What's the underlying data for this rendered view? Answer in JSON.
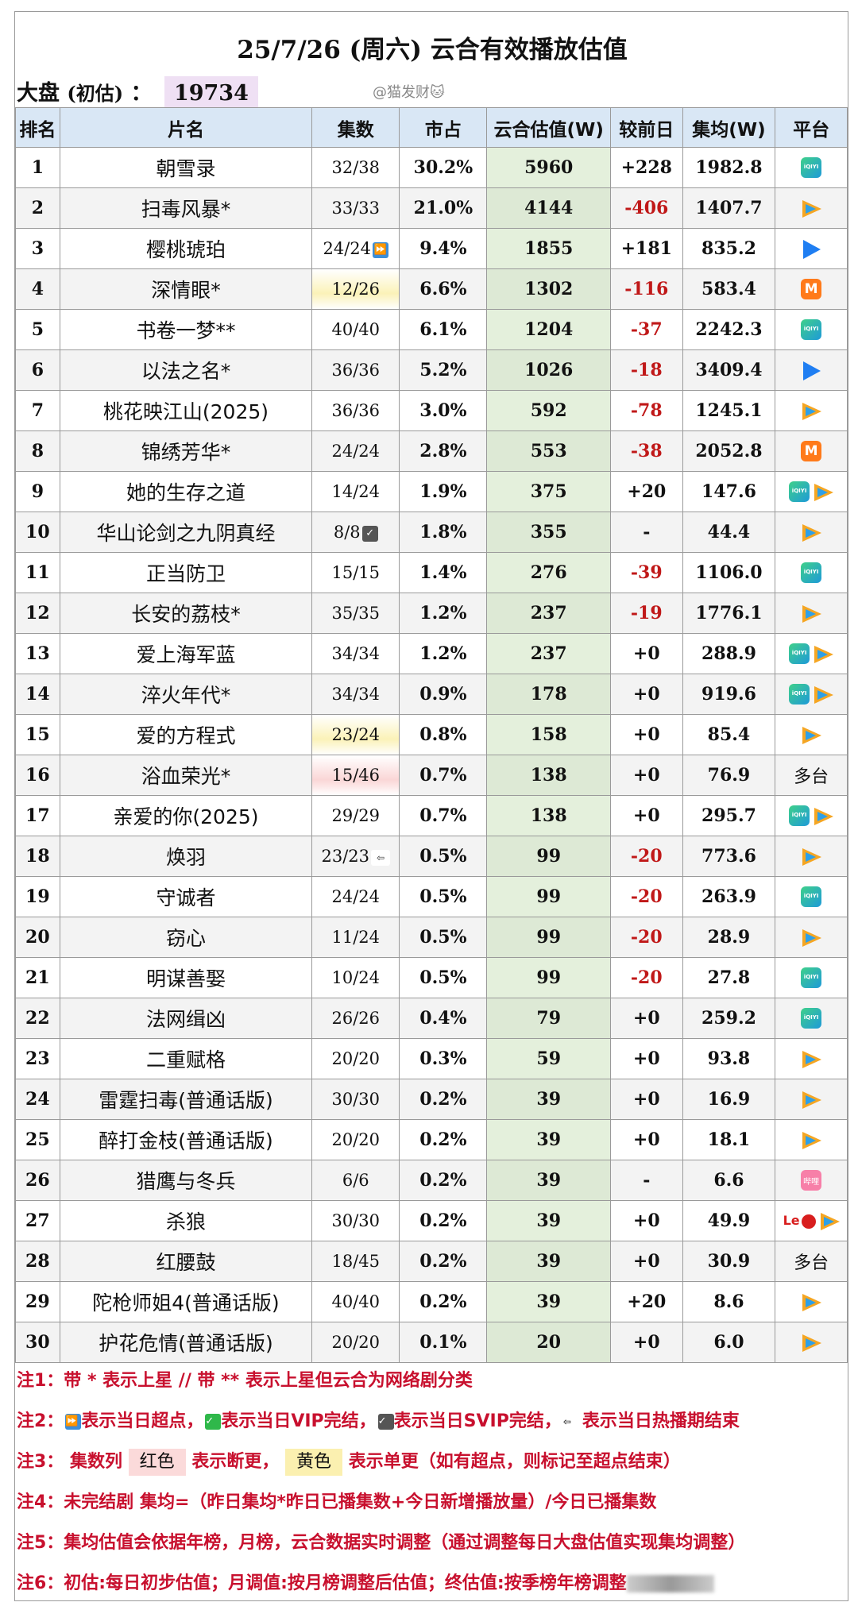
{
  "title": "25/7/26 (周六) 云合有效播放估值",
  "market": {
    "label": "大盘",
    "sub": "(初估)",
    "colon": "：",
    "value": "19734"
  },
  "watermark": "@猫发财🐱",
  "headers": [
    "排名",
    "片名",
    "集数",
    "市占",
    "云合估值(W)",
    "较前日",
    "集均(W)",
    "平台"
  ],
  "colors": {
    "header_bg": "#d9e7f5",
    "estimate_bg": "#e4f0dc",
    "negative": "#c01818",
    "note_red": "#c8102e",
    "break_red": "#fbdada",
    "change_yellow": "#fbf0b0"
  },
  "rows": [
    {
      "rank": "1",
      "name": "朝雪录",
      "episodes": "32/38",
      "share": "30.2%",
      "estimate": "5960",
      "change": "+228",
      "avg": "1982.8",
      "platforms": [
        "iqiyi-icon"
      ]
    },
    {
      "rank": "2",
      "name": "扫毒风暴*",
      "episodes": "33/33",
      "share": "21.0%",
      "estimate": "4144",
      "change": "-406",
      "avg": "1407.7",
      "platforms": [
        "tencent-video-icon"
      ]
    },
    {
      "rank": "3",
      "name": "樱桃琥珀",
      "episodes": "24/24",
      "marker": "fast-forward-icon",
      "share": "9.4%",
      "estimate": "1855",
      "change": "+181",
      "avg": "835.2",
      "platforms": [
        "youku-icon"
      ]
    },
    {
      "rank": "4",
      "name": "深情眼*",
      "episodes": "12/26",
      "highlight": "yellow",
      "share": "6.6%",
      "estimate": "1302",
      "change": "-116",
      "avg": "583.4",
      "platforms": [
        "mango-tv-icon"
      ]
    },
    {
      "rank": "5",
      "name": "书卷一梦**",
      "episodes": "40/40",
      "share": "6.1%",
      "estimate": "1204",
      "change": "-37",
      "avg": "2242.3",
      "platforms": [
        "iqiyi-icon"
      ]
    },
    {
      "rank": "6",
      "name": "以法之名*",
      "episodes": "36/36",
      "share": "5.2%",
      "estimate": "1026",
      "change": "-18",
      "avg": "3409.4",
      "platforms": [
        "youku-icon"
      ]
    },
    {
      "rank": "7",
      "name": "桃花映江山(2025)",
      "episodes": "36/36",
      "share": "3.0%",
      "estimate": "592",
      "change": "-78",
      "avg": "1245.1",
      "platforms": [
        "tencent-video-icon"
      ]
    },
    {
      "rank": "8",
      "name": "锦绣芳华*",
      "episodes": "24/24",
      "share": "2.8%",
      "estimate": "553",
      "change": "-38",
      "avg": "2052.8",
      "platforms": [
        "mango-tv-icon"
      ]
    },
    {
      "rank": "9",
      "name": "她的生存之道",
      "episodes": "14/24",
      "share": "1.9%",
      "estimate": "375",
      "change": "+20",
      "avg": "147.6",
      "platforms": [
        "iqiyi-icon",
        "tencent-video-icon"
      ]
    },
    {
      "rank": "10",
      "name": "华山论剑之九阴真经",
      "episodes": "8/8",
      "marker": "svip-complete-icon",
      "share": "1.8%",
      "estimate": "355",
      "change": "-",
      "avg": "44.4",
      "platforms": [
        "tencent-video-icon"
      ]
    },
    {
      "rank": "11",
      "name": "正当防卫",
      "episodes": "15/15",
      "share": "1.4%",
      "estimate": "276",
      "change": "-39",
      "avg": "1106.0",
      "platforms": [
        "iqiyi-icon"
      ]
    },
    {
      "rank": "12",
      "name": "长安的荔枝*",
      "episodes": "35/35",
      "share": "1.2%",
      "estimate": "237",
      "change": "-19",
      "avg": "1776.1",
      "platforms": [
        "tencent-video-icon"
      ]
    },
    {
      "rank": "13",
      "name": "爱上海军蓝",
      "episodes": "34/34",
      "share": "1.2%",
      "estimate": "237",
      "change": "+0",
      "avg": "288.9",
      "platforms": [
        "iqiyi-icon",
        "tencent-video-icon"
      ]
    },
    {
      "rank": "14",
      "name": "淬火年代*",
      "episodes": "34/34",
      "share": "0.9%",
      "estimate": "178",
      "change": "+0",
      "avg": "919.6",
      "platforms": [
        "iqiyi-icon",
        "tencent-video-icon"
      ]
    },
    {
      "rank": "15",
      "name": "爱的方程式",
      "episodes": "23/24",
      "highlight": "yellow",
      "share": "0.8%",
      "estimate": "158",
      "change": "+0",
      "avg": "85.4",
      "platforms": [
        "tencent-video-icon"
      ]
    },
    {
      "rank": "16",
      "name": "浴血荣光*",
      "episodes": "15/46",
      "highlight": "red",
      "share": "0.7%",
      "estimate": "138",
      "change": "+0",
      "avg": "76.9",
      "platforms_text": "多台"
    },
    {
      "rank": "17",
      "name": "亲爱的你(2025)",
      "episodes": "29/29",
      "share": "0.7%",
      "estimate": "138",
      "change": "+0",
      "avg": "295.7",
      "platforms": [
        "iqiyi-icon",
        "tencent-video-icon"
      ]
    },
    {
      "rank": "18",
      "name": "焕羽",
      "episodes": "23/23",
      "marker": "end-hot-icon",
      "share": "0.5%",
      "estimate": "99",
      "change": "-20",
      "avg": "773.6",
      "platforms": [
        "tencent-video-icon"
      ]
    },
    {
      "rank": "19",
      "name": "守诚者",
      "episodes": "24/24",
      "share": "0.5%",
      "estimate": "99",
      "change": "-20",
      "avg": "263.9",
      "platforms": [
        "iqiyi-icon"
      ]
    },
    {
      "rank": "20",
      "name": "窃心",
      "episodes": "11/24",
      "share": "0.5%",
      "estimate": "99",
      "change": "-20",
      "avg": "28.9",
      "platforms": [
        "tencent-video-icon"
      ]
    },
    {
      "rank": "21",
      "name": "明谋善娶",
      "episodes": "10/24",
      "share": "0.5%",
      "estimate": "99",
      "change": "-20",
      "avg": "27.8",
      "platforms": [
        "iqiyi-icon"
      ]
    },
    {
      "rank": "22",
      "name": "法网缉凶",
      "episodes": "26/26",
      "share": "0.4%",
      "estimate": "79",
      "change": "+0",
      "avg": "259.2",
      "platforms": [
        "iqiyi-icon"
      ]
    },
    {
      "rank": "23",
      "name": "二重赋格",
      "episodes": "20/20",
      "share": "0.3%",
      "estimate": "59",
      "change": "+0",
      "avg": "93.8",
      "platforms": [
        "tencent-video-icon"
      ]
    },
    {
      "rank": "24",
      "name": "雷霆扫毒(普通话版)",
      "episodes": "30/30",
      "share": "0.2%",
      "estimate": "39",
      "change": "+0",
      "avg": "16.9",
      "platforms": [
        "tencent-video-icon"
      ]
    },
    {
      "rank": "25",
      "name": "醉打金枝(普通话版)",
      "episodes": "20/20",
      "share": "0.2%",
      "estimate": "39",
      "change": "+0",
      "avg": "18.1",
      "platforms": [
        "tencent-video-icon"
      ]
    },
    {
      "rank": "26",
      "name": "猎鹰与冬兵",
      "episodes": "6/6",
      "share": "0.2%",
      "estimate": "39",
      "change": "-",
      "avg": "6.6",
      "platforms": [
        "bilibili-icon"
      ]
    },
    {
      "rank": "27",
      "name": "杀狼",
      "episodes": "30/30",
      "share": "0.2%",
      "estimate": "39",
      "change": "+0",
      "avg": "49.9",
      "platforms": [
        "le-icon",
        "tencent-video-icon"
      ]
    },
    {
      "rank": "28",
      "name": "红腰鼓",
      "episodes": "18/45",
      "share": "0.2%",
      "estimate": "39",
      "change": "+0",
      "avg": "30.9",
      "platforms_text": "多台"
    },
    {
      "rank": "29",
      "name": "陀枪师姐4(普通话版)",
      "episodes": "40/40",
      "share": "0.2%",
      "estimate": "39",
      "change": "+20",
      "avg": "8.6",
      "platforms": [
        "tencent-video-icon"
      ]
    },
    {
      "rank": "30",
      "name": "护花危情(普通话版)",
      "episodes": "20/20",
      "share": "0.1%",
      "estimate": "20",
      "change": "+0",
      "avg": "6.0",
      "platforms": [
        "tencent-video-icon"
      ]
    }
  ],
  "notes": {
    "n1": "注1：带 * 表示上星 // 带 ** 表示上星但云合为网络剧分类",
    "n2_prefix": "注2：",
    "n2_a": "表示当日超点，",
    "n2_b": "表示当日VIP完结，",
    "n2_c": "表示当日SVIP完结，",
    "n2_d": "表示当日热播期结束",
    "n3_prefix": "注3：  集数列",
    "n3_red": "红色",
    "n3_mid": "表示断更，",
    "n3_yellow": "黄色",
    "n3_tail": "表示单更（如有超点，则标记至超点结束）",
    "n4": "注4：未完结剧 集均=（昨日集均*昨日已播集数+今日新增播放量）/今日已播集数",
    "n5": "注5：集均估值会依据年榜，月榜，云合数据实时调整（通过调整每日大盘估值实现集均调整）",
    "n6": "注6：初估:每日初步估值；月调值:按月榜调整后估值；终估值:按季榜年榜调整"
  }
}
